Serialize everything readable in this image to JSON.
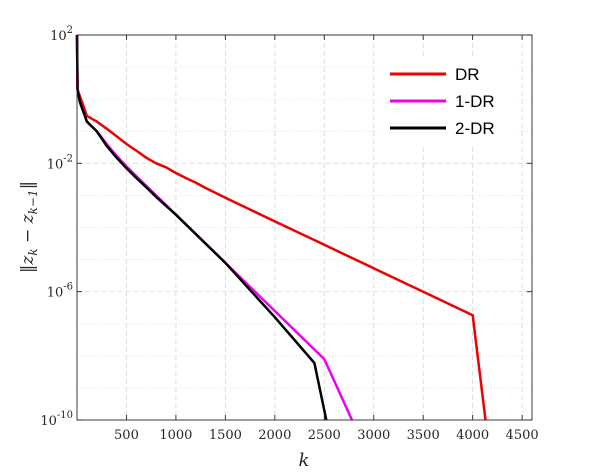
{
  "chart_data": {
    "type": "line",
    "xlabel": "k",
    "ylabel": "||z_k − z_{k−1}||",
    "ylabel_parts": {
      "open": "‖",
      "z1": "z",
      "sub1": "k",
      "minus": " − ",
      "z2": "z",
      "sub2": "k−1",
      "close": "‖"
    },
    "xlim": [
      0,
      4600
    ],
    "ylim": [
      1e-10,
      100
    ],
    "yscale": "log",
    "grid": true,
    "legend_position": "top-right",
    "x_ticks": [
      500,
      1000,
      1500,
      2000,
      2500,
      3000,
      3500,
      4000,
      4500
    ],
    "x_tick_labels": [
      "500",
      "1000",
      "1500",
      "2000",
      "2500",
      "3000",
      "3500",
      "4000",
      "4500"
    ],
    "y_ticks": [
      {
        "value": 100,
        "base": "10",
        "exp": "2"
      },
      {
        "value": 0.01,
        "base": "10",
        "exp": "-2"
      },
      {
        "value": 1e-06,
        "base": "10",
        "exp": "-6"
      },
      {
        "value": 1e-10,
        "base": "10",
        "exp": "-10"
      }
    ],
    "series": [
      {
        "name": "DR",
        "color": "#ee0000",
        "points": [
          [
            0,
            100
          ],
          [
            5,
            2
          ],
          [
            30,
            1.2
          ],
          [
            100,
            0.3
          ],
          [
            200,
            0.2
          ],
          [
            300,
            0.12
          ],
          [
            400,
            0.07
          ],
          [
            500,
            0.04
          ],
          [
            600,
            0.025
          ],
          [
            700,
            0.015
          ],
          [
            800,
            0.01
          ],
          [
            900,
            0.0075
          ],
          [
            1000,
            0.005
          ],
          [
            1100,
            0.0035
          ],
          [
            1200,
            0.0025
          ],
          [
            1300,
            0.0017
          ],
          [
            1400,
            0.0012
          ],
          [
            1500,
            0.00085
          ],
          [
            1600,
            0.0006
          ],
          [
            2000,
            0.000155
          ],
          [
            2500,
            2.88e-05
          ],
          [
            3000,
            5.35e-06
          ],
          [
            3500,
            9.9e-07
          ],
          [
            4000,
            1.84e-07
          ],
          [
            4130,
            1e-10
          ]
        ]
      },
      {
        "name": "1-DR",
        "color": "#ee00ee",
        "points": [
          [
            0,
            100
          ],
          [
            5,
            2
          ],
          [
            30,
            0.8
          ],
          [
            100,
            0.2
          ],
          [
            200,
            0.1
          ],
          [
            300,
            0.04
          ],
          [
            400,
            0.017
          ],
          [
            500,
            0.008
          ],
          [
            600,
            0.004
          ],
          [
            700,
            0.002
          ],
          [
            800,
            0.001
          ],
          [
            1000,
            0.00025
          ],
          [
            1500,
            7.9e-06
          ],
          [
            2000,
            2.5e-07
          ],
          [
            2500,
            7.9e-09
          ],
          [
            2780,
            1e-10
          ]
        ]
      },
      {
        "name": "2-DR",
        "color": "#000000",
        "points": [
          [
            0,
            100
          ],
          [
            5,
            2
          ],
          [
            30,
            0.8
          ],
          [
            100,
            0.2
          ],
          [
            200,
            0.1
          ],
          [
            300,
            0.035
          ],
          [
            400,
            0.015
          ],
          [
            500,
            0.007
          ],
          [
            600,
            0.0035
          ],
          [
            700,
            0.0018
          ],
          [
            800,
            0.0009
          ],
          [
            1000,
            0.00025
          ],
          [
            1500,
            7.9e-06
          ],
          [
            2000,
            1.6e-07
          ],
          [
            2400,
            6e-09
          ],
          [
            2520,
            1e-10
          ]
        ]
      }
    ]
  }
}
